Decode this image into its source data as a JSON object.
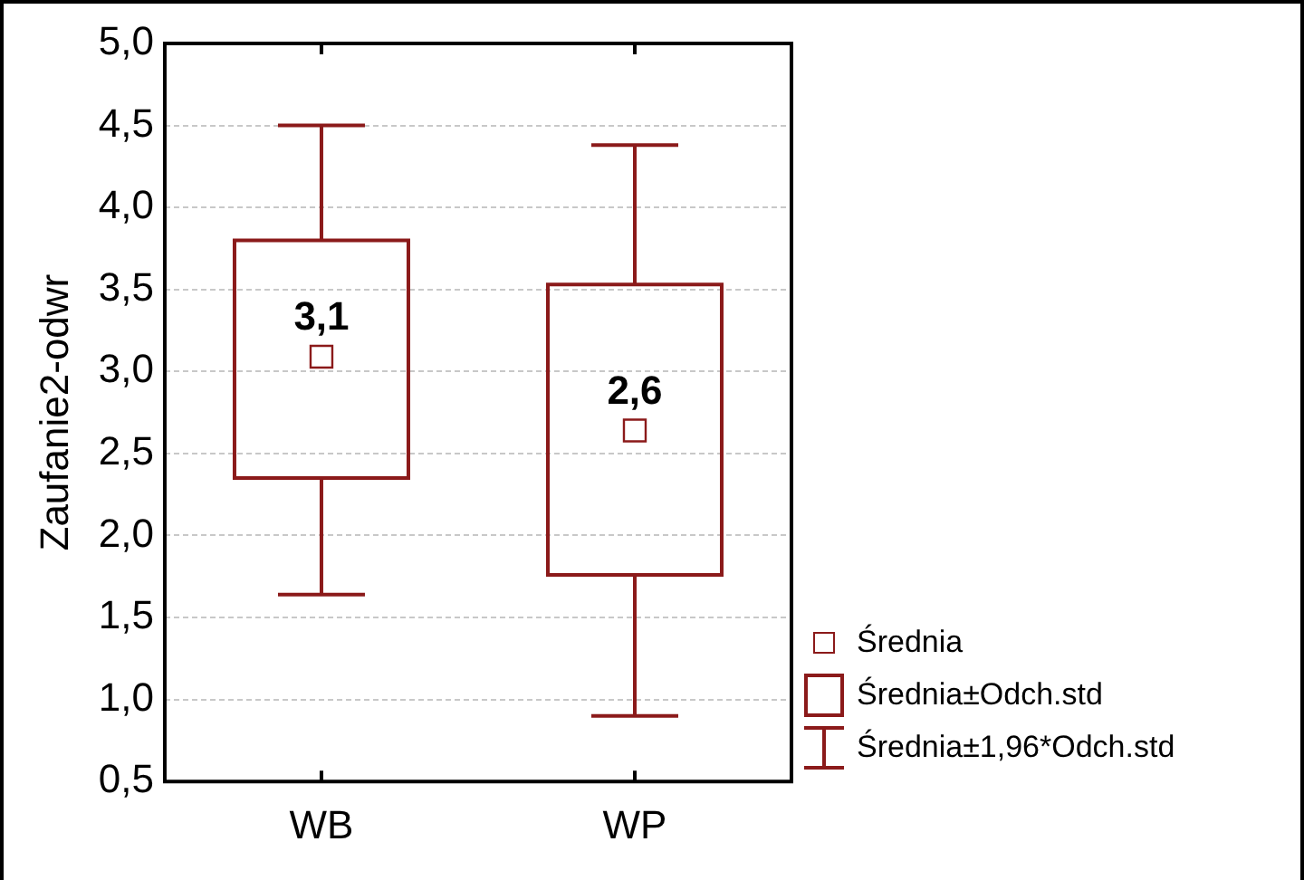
{
  "chart_data": {
    "type": "box",
    "ylabel": "Zaufanie2-odwr",
    "categories": [
      "WB",
      "WP"
    ],
    "color": "#8b1a1a",
    "boxes": [
      {
        "low": 1.64,
        "q1": 2.35,
        "median": 3.09,
        "q3": 3.8,
        "high": 4.5
      },
      {
        "low": 0.9,
        "q1": 1.76,
        "median": 2.64,
        "q3": 3.53,
        "high": 4.38
      }
    ],
    "value_labels": [
      "3,1",
      "2,6"
    ],
    "annotations": [
      "Średnia",
      "Średnia±Odch.std",
      "Średnia±1,96*Odch.std"
    ],
    "ylim": [
      0.5,
      5.0
    ],
    "yticks": [
      {
        "value": 0.5,
        "label": "0,5"
      },
      {
        "value": 1,
        "label": "1,0"
      },
      {
        "value": 1.5,
        "label": "1,5"
      },
      {
        "value": 2,
        "label": "2,0"
      },
      {
        "value": 2.5,
        "label": "2,5"
      },
      {
        "value": 3,
        "label": "3,0"
      },
      {
        "value": 3.5,
        "label": "3,5"
      },
      {
        "value": 4,
        "label": "4,0"
      },
      {
        "value": 4.5,
        "label": "4,5"
      },
      {
        "value": 5,
        "label": "5,0"
      }
    ],
    "grid": "y",
    "marker": "square"
  }
}
